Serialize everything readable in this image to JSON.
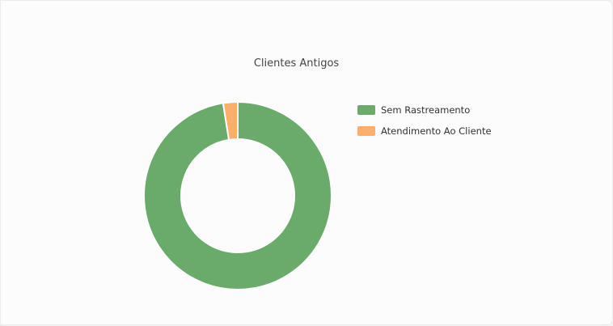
{
  "chart_data": {
    "type": "pie",
    "variant": "doughnut",
    "title": "Clientes Antigos",
    "legend_position": "right",
    "categories": [
      "Sem Rastreamento",
      "Atendimento Ao Cliente"
    ],
    "values": [
      97.5,
      2.5
    ],
    "colors": [
      "#6aab6c",
      "#fdae6b"
    ]
  }
}
